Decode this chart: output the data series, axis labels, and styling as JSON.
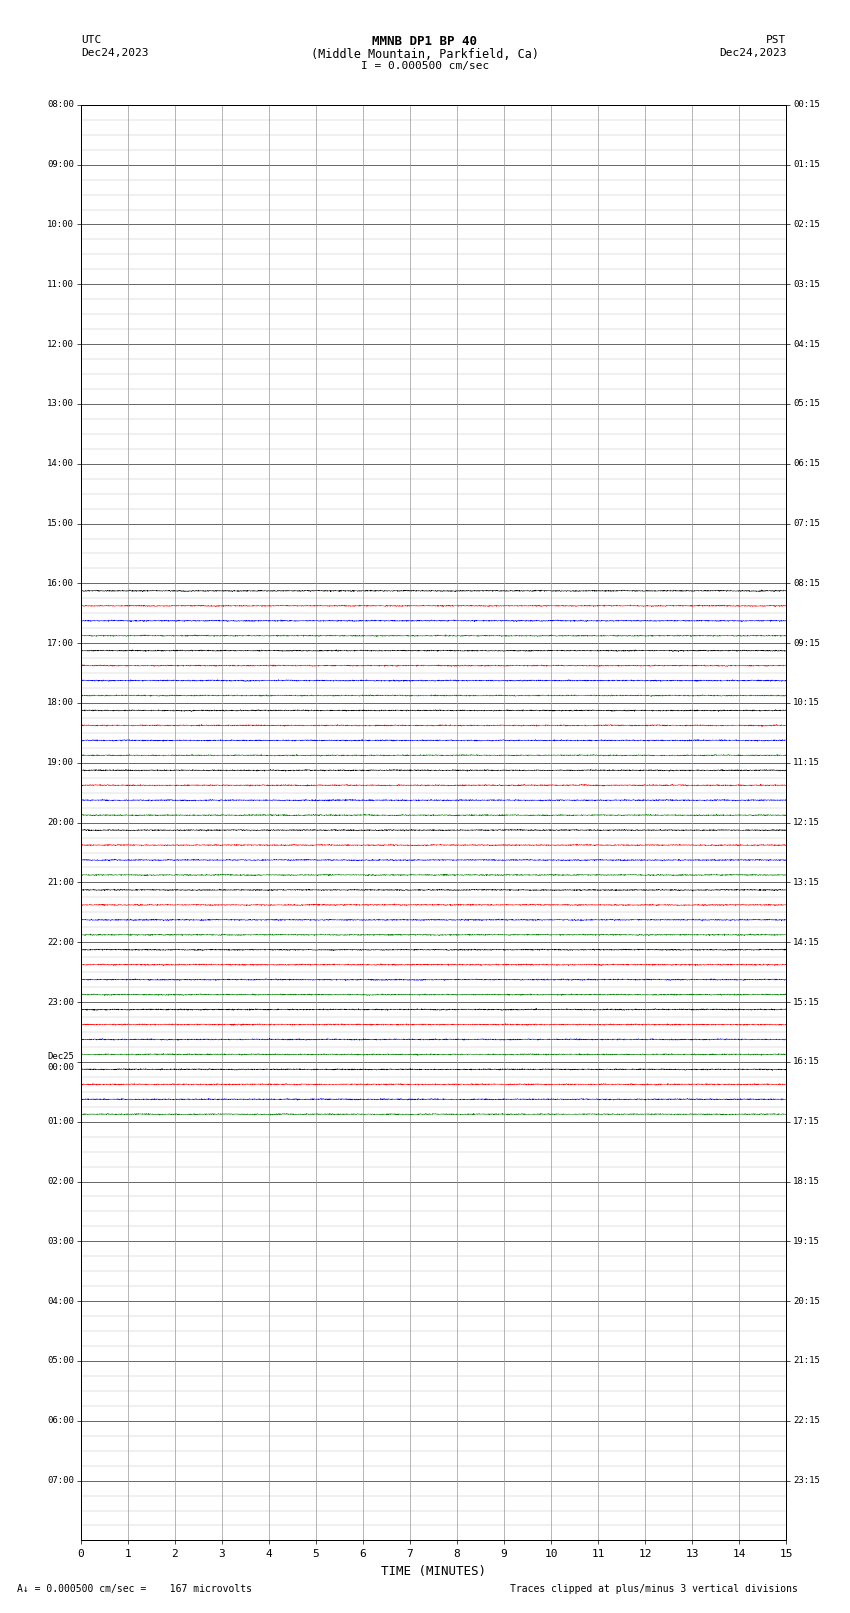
{
  "title_line1": "MMNB DP1 BP 40",
  "title_line2": "(Middle Mountain, Parkfield, Ca)",
  "scale_text": "I = 0.000500 cm/sec",
  "utc_label": "UTC",
  "utc_date": "Dec24,2023",
  "pst_label": "PST",
  "pst_date": "Dec24,2023",
  "footer_left": "= 0.000500 cm/sec =    167 microvolts",
  "footer_right": "Traces clipped at plus/minus 3 vertical divisions",
  "xlabel": "TIME (MINUTES)",
  "left_labels": [
    "08:00",
    "09:00",
    "10:00",
    "11:00",
    "12:00",
    "13:00",
    "14:00",
    "15:00",
    "16:00",
    "17:00",
    "18:00",
    "19:00",
    "20:00",
    "21:00",
    "22:00",
    "23:00",
    "Dec25\n00:00",
    "01:00",
    "02:00",
    "03:00",
    "04:00",
    "05:00",
    "06:00",
    "07:00"
  ],
  "right_labels": [
    "00:15",
    "01:15",
    "02:15",
    "03:15",
    "04:15",
    "05:15",
    "06:15",
    "07:15",
    "08:15",
    "09:15",
    "10:15",
    "11:15",
    "12:15",
    "13:15",
    "14:15",
    "15:15",
    "16:15",
    "17:15",
    "18:15",
    "19:15",
    "20:15",
    "21:15",
    "22:15",
    "23:15"
  ],
  "num_rows": 24,
  "traces_per_row": 4,
  "active_row_indices": [
    8,
    9,
    10,
    11,
    12,
    13,
    14,
    15,
    16
  ],
  "trace_colors": [
    "black",
    "red",
    "blue",
    "green"
  ],
  "background_color": "white",
  "grid_color": "#999999",
  "xmin": 0,
  "xmax": 15,
  "xticks": [
    0,
    1,
    2,
    3,
    4,
    5,
    6,
    7,
    8,
    9,
    10,
    11,
    12,
    13,
    14,
    15
  ],
  "sub_rows_per_hour": 4,
  "noise_amplitude": 0.018,
  "trace_lw": 0.35
}
